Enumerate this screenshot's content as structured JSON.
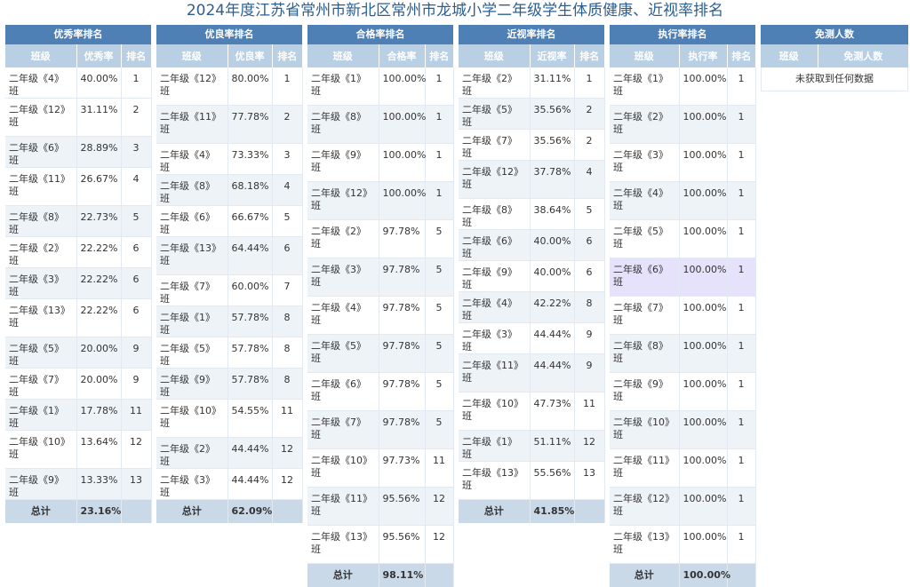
{
  "page_title": "2024年度江苏省常州市新北区常州市龙城小学二年级学生体质健康、近视率排名",
  "boards": [
    {
      "title": "优秀率排名",
      "headers": [
        "班级",
        "优秀率",
        "排名"
      ],
      "rows": [
        {
          "cls": "二年级《4》班",
          "val": "40.00%",
          "rank": "1"
        },
        {
          "cls": "二年级《12》班",
          "val": "31.11%",
          "rank": "2"
        },
        {
          "cls": "二年级《6》班",
          "val": "28.89%",
          "rank": "3"
        },
        {
          "cls": "二年级《11》班",
          "val": "26.67%",
          "rank": "4"
        },
        {
          "cls": "二年级《8》班",
          "val": "22.73%",
          "rank": "5"
        },
        {
          "cls": "二年级《2》班",
          "val": "22.22%",
          "rank": "6"
        },
        {
          "cls": "二年级《3》班",
          "val": "22.22%",
          "rank": "6"
        },
        {
          "cls": "二年级《13》班",
          "val": "22.22%",
          "rank": "6"
        },
        {
          "cls": "二年级《5》班",
          "val": "20.00%",
          "rank": "9"
        },
        {
          "cls": "二年级《7》班",
          "val": "20.00%",
          "rank": "9"
        },
        {
          "cls": "二年级《1》班",
          "val": "17.78%",
          "rank": "11"
        },
        {
          "cls": "二年级《10》班",
          "val": "13.64%",
          "rank": "12"
        },
        {
          "cls": "二年级《9》班",
          "val": "13.33%",
          "rank": "13"
        }
      ],
      "total_label": "总计",
      "total_value": "23.16%"
    },
    {
      "title": "优良率排名",
      "headers": [
        "班级",
        "优良率",
        "排名"
      ],
      "rows": [
        {
          "cls": "二年级《12》班",
          "val": "80.00%",
          "rank": "1"
        },
        {
          "cls": "二年级《11》班",
          "val": "77.78%",
          "rank": "2"
        },
        {
          "cls": "二年级《4》班",
          "val": "73.33%",
          "rank": "3"
        },
        {
          "cls": "二年级《8》班",
          "val": "68.18%",
          "rank": "4"
        },
        {
          "cls": "二年级《6》班",
          "val": "66.67%",
          "rank": "5"
        },
        {
          "cls": "二年级《13》班",
          "val": "64.44%",
          "rank": "6"
        },
        {
          "cls": "二年级《7》班",
          "val": "60.00%",
          "rank": "7"
        },
        {
          "cls": "二年级《1》班",
          "val": "57.78%",
          "rank": "8"
        },
        {
          "cls": "二年级《5》班",
          "val": "57.78%",
          "rank": "8"
        },
        {
          "cls": "二年级《9》班",
          "val": "57.78%",
          "rank": "8"
        },
        {
          "cls": "二年级《10》班",
          "val": "54.55%",
          "rank": "11"
        },
        {
          "cls": "二年级《2》班",
          "val": "44.44%",
          "rank": "12"
        },
        {
          "cls": "二年级《3》班",
          "val": "44.44%",
          "rank": "12"
        }
      ],
      "total_label": "总计",
      "total_value": "62.09%"
    },
    {
      "title": "合格率排名",
      "headers": [
        "班级",
        "合格率",
        "排名"
      ],
      "rows": [
        {
          "cls": "二年级《1》班",
          "val": "100.00%",
          "rank": "1"
        },
        {
          "cls": "二年级《8》班",
          "val": "100.00%",
          "rank": "1"
        },
        {
          "cls": "二年级《9》班",
          "val": "100.00%",
          "rank": "1"
        },
        {
          "cls": "二年级《12》班",
          "val": "100.00%",
          "rank": "1"
        },
        {
          "cls": "二年级《2》班",
          "val": "97.78%",
          "rank": "5"
        },
        {
          "cls": "二年级《3》班",
          "val": "97.78%",
          "rank": "5"
        },
        {
          "cls": "二年级《4》班",
          "val": "97.78%",
          "rank": "5"
        },
        {
          "cls": "二年级《5》班",
          "val": "97.78%",
          "rank": "5"
        },
        {
          "cls": "二年级《6》班",
          "val": "97.78%",
          "rank": "5"
        },
        {
          "cls": "二年级《7》班",
          "val": "97.78%",
          "rank": "5"
        },
        {
          "cls": "二年级《10》班",
          "val": "97.73%",
          "rank": "11"
        },
        {
          "cls": "二年级《11》班",
          "val": "95.56%",
          "rank": "12"
        },
        {
          "cls": "二年级《13》班",
          "val": "95.56%",
          "rank": "12"
        }
      ],
      "total_label": "总计",
      "total_value": "98.11%"
    },
    {
      "title": "近视率排名",
      "headers": [
        "班级",
        "近视率",
        "排名"
      ],
      "rows": [
        {
          "cls": "二年级《2》班",
          "val": "31.11%",
          "rank": "1"
        },
        {
          "cls": "二年级《5》班",
          "val": "35.56%",
          "rank": "2"
        },
        {
          "cls": "二年级《7》班",
          "val": "35.56%",
          "rank": "2"
        },
        {
          "cls": "二年级《12》班",
          "val": "37.78%",
          "rank": "4"
        },
        {
          "cls": "二年级《8》班",
          "val": "38.64%",
          "rank": "5"
        },
        {
          "cls": "二年级《6》班",
          "val": "40.00%",
          "rank": "6"
        },
        {
          "cls": "二年级《9》班",
          "val": "40.00%",
          "rank": "6"
        },
        {
          "cls": "二年级《4》班",
          "val": "42.22%",
          "rank": "8"
        },
        {
          "cls": "二年级《3》班",
          "val": "44.44%",
          "rank": "9"
        },
        {
          "cls": "二年级《11》班",
          "val": "44.44%",
          "rank": "9"
        },
        {
          "cls": "二年级《10》班",
          "val": "47.73%",
          "rank": "11"
        },
        {
          "cls": "二年级《1》班",
          "val": "51.11%",
          "rank": "12"
        },
        {
          "cls": "二年级《13》班",
          "val": "55.56%",
          "rank": "13"
        }
      ],
      "total_label": "总计",
      "total_value": "41.85%"
    },
    {
      "title": "执行率排名",
      "headers": [
        "班级",
        "执行率",
        "排名"
      ],
      "rows": [
        {
          "cls": "二年级《1》班",
          "val": "100.00%",
          "rank": "1"
        },
        {
          "cls": "二年级《2》班",
          "val": "100.00%",
          "rank": "1"
        },
        {
          "cls": "二年级《3》班",
          "val": "100.00%",
          "rank": "1"
        },
        {
          "cls": "二年级《4》班",
          "val": "100.00%",
          "rank": "1"
        },
        {
          "cls": "二年级《5》班",
          "val": "100.00%",
          "rank": "1"
        },
        {
          "cls": "二年级《6》班",
          "val": "100.00%",
          "rank": "1"
        },
        {
          "cls": "二年级《7》班",
          "val": "100.00%",
          "rank": "1"
        },
        {
          "cls": "二年级《8》班",
          "val": "100.00%",
          "rank": "1"
        },
        {
          "cls": "二年级《9》班",
          "val": "100.00%",
          "rank": "1"
        },
        {
          "cls": "二年级《10》班",
          "val": "100.00%",
          "rank": "1"
        },
        {
          "cls": "二年级《11》班",
          "val": "100.00%",
          "rank": "1"
        },
        {
          "cls": "二年级《12》班",
          "val": "100.00%",
          "rank": "1"
        },
        {
          "cls": "二年级《13》班",
          "val": "100.00%",
          "rank": "1"
        }
      ],
      "total_label": "总计",
      "total_value": "100.00%"
    },
    {
      "title": "免测人数",
      "headers": [
        "班级",
        "免测人数"
      ],
      "rows": [],
      "empty_text": "未获取到任何数据"
    }
  ],
  "colors": {
    "title": "#2b5f91",
    "board_header": "#4e7fb5",
    "column_header": "#b9cfe4",
    "stripe": "#eef3f8",
    "total_row": "#c9d9e8",
    "highlight_row": "#e6e2fb"
  }
}
